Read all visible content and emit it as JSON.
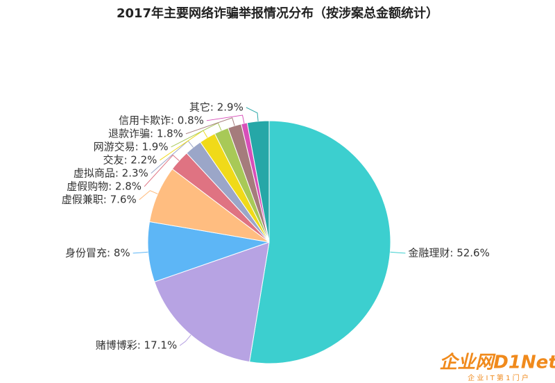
{
  "chart_data": {
    "type": "pie",
    "title": "2017年主要网络诈骗举报情况分布（按涉案总金额统计）",
    "values": [
      52.6,
      17.1,
      8,
      7.6,
      2.8,
      2.3,
      2.2,
      1.9,
      1.8,
      0.8,
      2.9
    ],
    "value_labels": [
      "金融理财: 52.6%",
      "赌博博彩: 17.1%",
      "身份冒充: 8%",
      "虚假兼职: 7.6%",
      "虚假购物: 2.8%",
      "虚拟商品: 2.3%",
      "交友: 2.2%",
      "网游交易: 1.9%",
      "退款诈骗: 1.8%",
      "信用卡欺诈: 0.8%",
      "其它: 2.9%"
    ],
    "colors": [
      "#3ccfcf",
      "#b7a3e3",
      "#5db6f6",
      "#ffbd80",
      "#df7382",
      "#9ba6c8",
      "#f0da19",
      "#a8c957",
      "#a57c7c",
      "#d84fb9",
      "#26a7a7"
    ],
    "watermark": "企业网D1Net",
    "watermark_subtitle": "企 业 I T 第 1 门 户"
  }
}
